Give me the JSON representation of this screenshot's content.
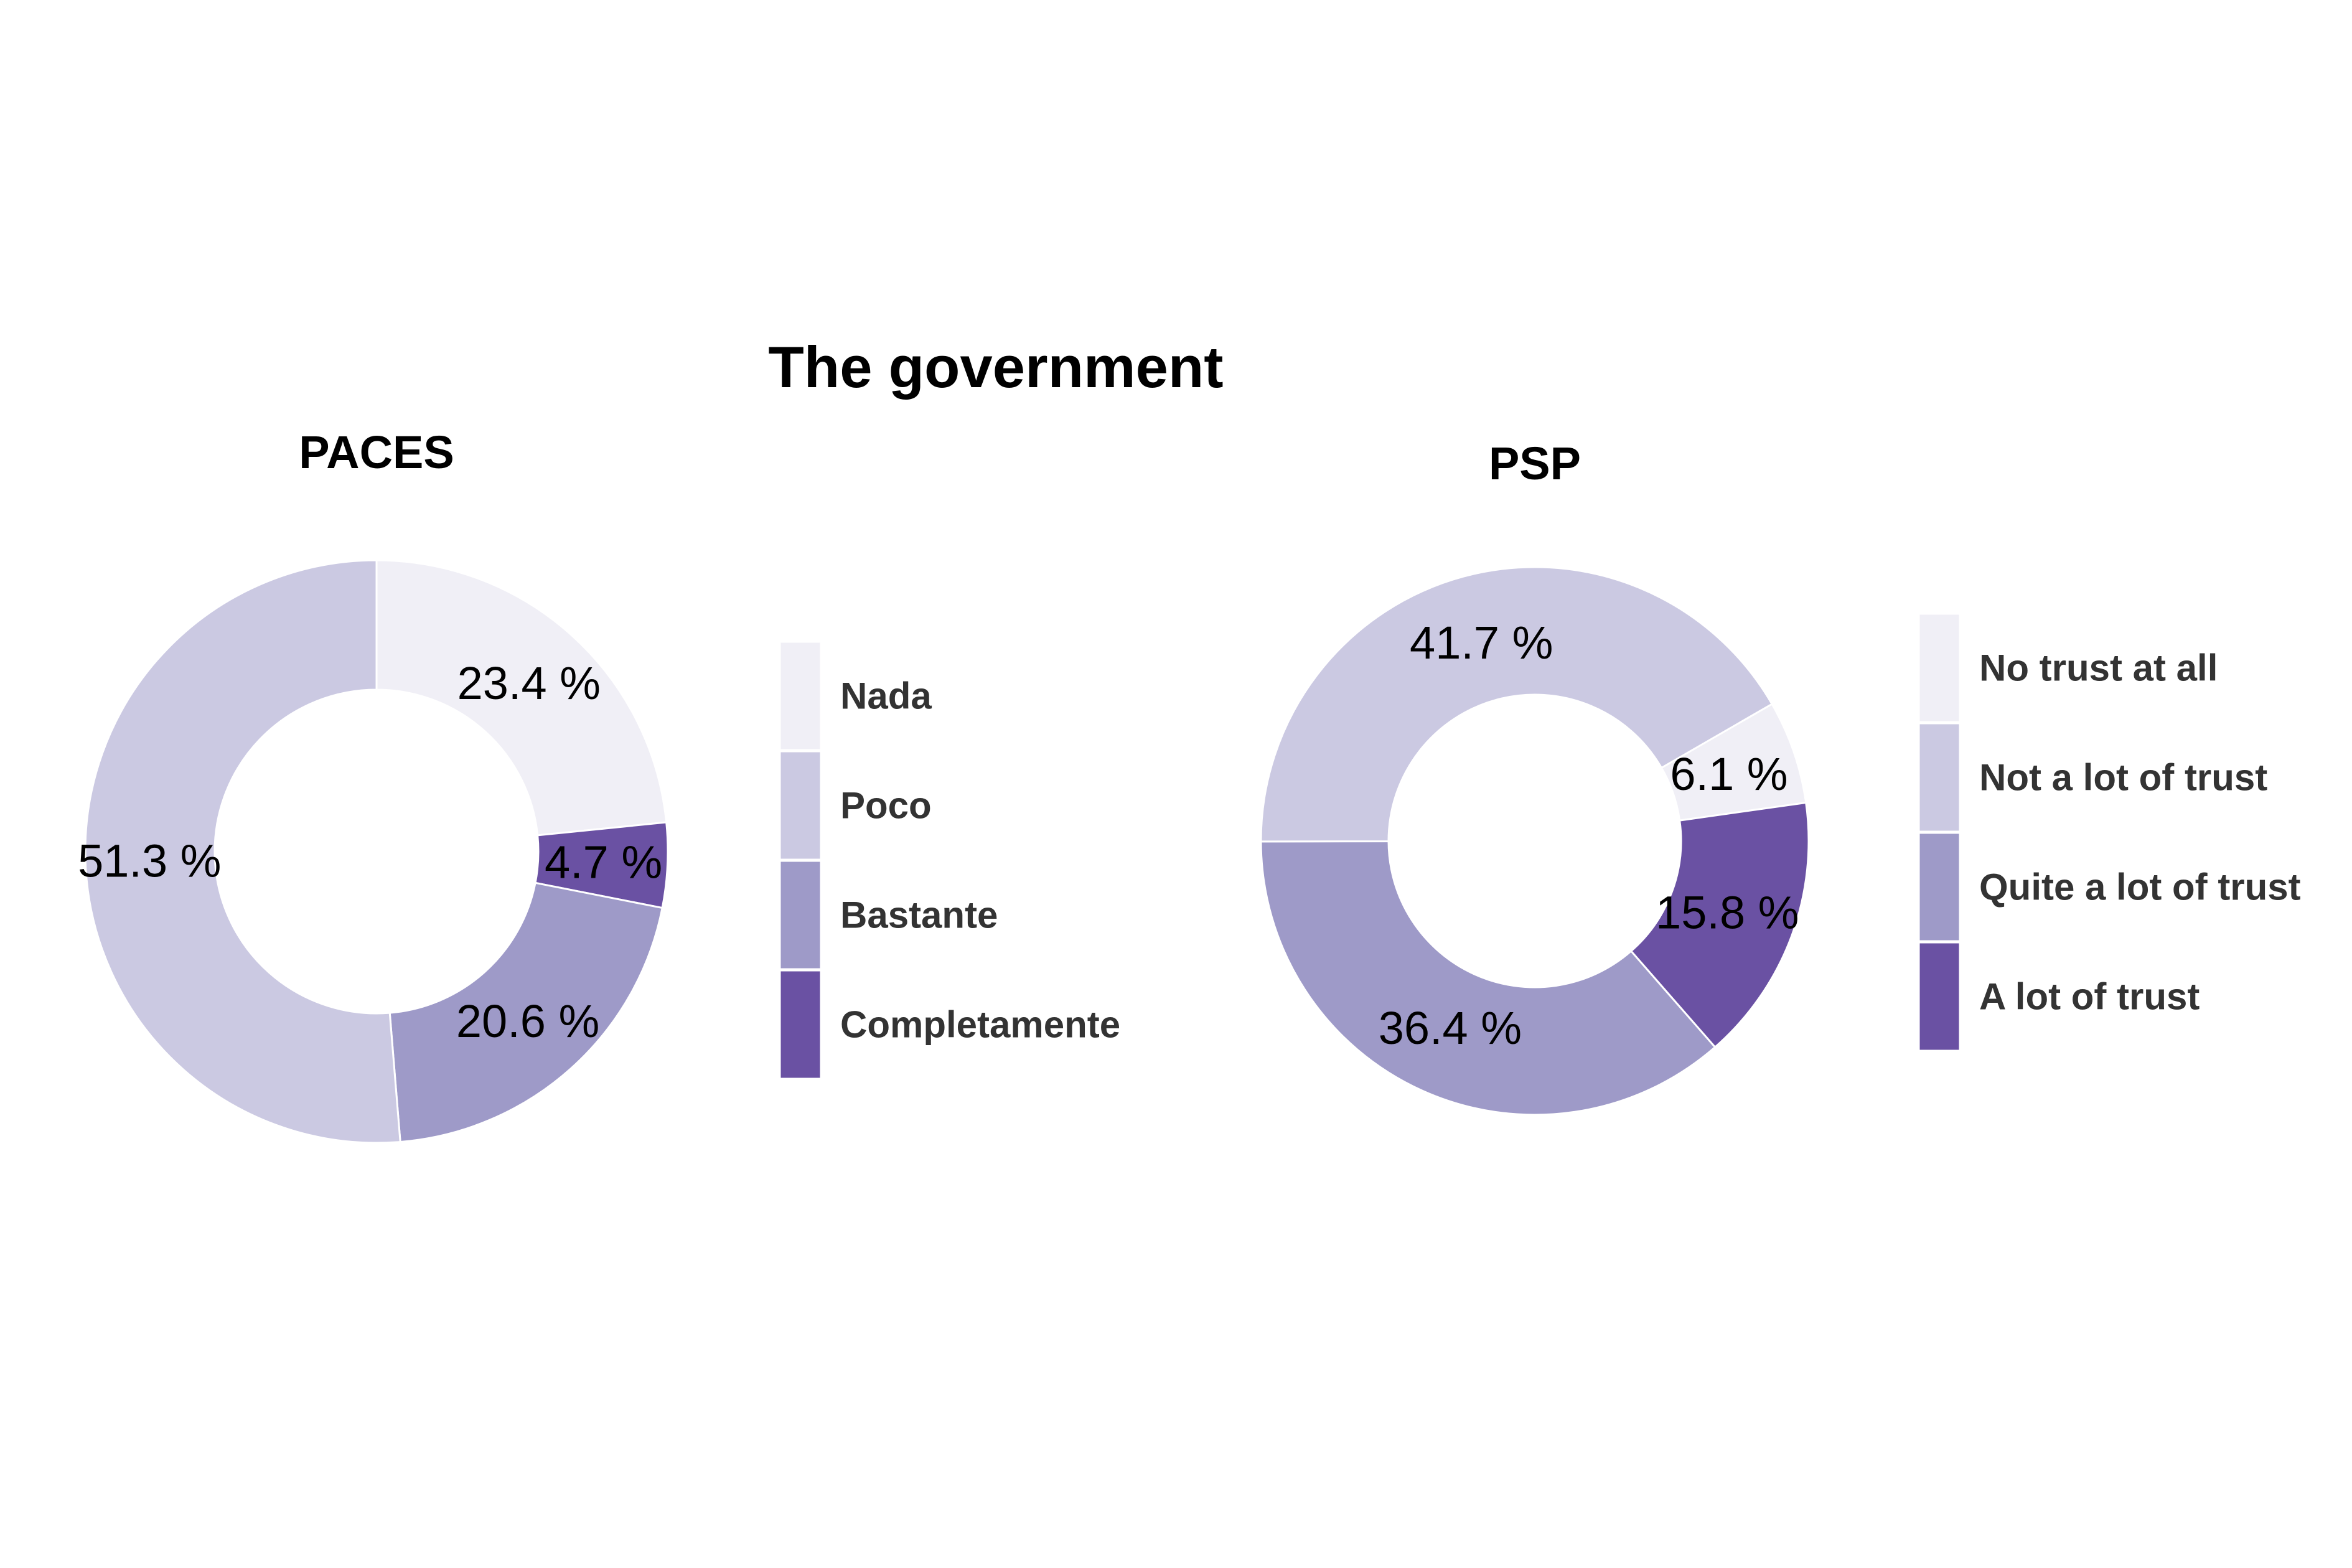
{
  "title": "The government",
  "chart_data": [
    {
      "type": "pie",
      "variant": "donut",
      "title": "PACES",
      "categories": [
        "Nada",
        "Poco",
        "Bastante",
        "Completamente"
      ],
      "values": [
        23.4,
        51.3,
        20.6,
        4.7
      ],
      "labels": [
        "23.4 %",
        "51.3 %",
        "20.6 %",
        "4.7 %"
      ],
      "colors": [
        "#F0EFF6",
        "#CBC9E2",
        "#9E9AC8",
        "#6A51A3"
      ],
      "slice_order": [
        "Nada",
        "Completamente",
        "Bastante",
        "Poco"
      ],
      "start_angle_deg": 0,
      "direction": "clockwise",
      "legend_position": "right"
    },
    {
      "type": "pie",
      "variant": "donut",
      "title": "PSP",
      "categories": [
        "No trust at all",
        "Not a lot of trust",
        "Quite a lot of trust",
        "A lot of trust"
      ],
      "values": [
        6.1,
        41.7,
        36.4,
        15.8
      ],
      "labels": [
        "6.1 %",
        "41.7 %",
        "36.4 %",
        "15.8 %"
      ],
      "colors": [
        "#F0EFF6",
        "#CBC9E2",
        "#9E9AC8",
        "#6A51A3"
      ],
      "slice_order": [
        "No trust at all",
        "A lot of trust",
        "Quite a lot of trust",
        "Not a lot of trust"
      ],
      "start_angle_deg": 60,
      "direction": "clockwise",
      "legend_position": "right"
    }
  ]
}
